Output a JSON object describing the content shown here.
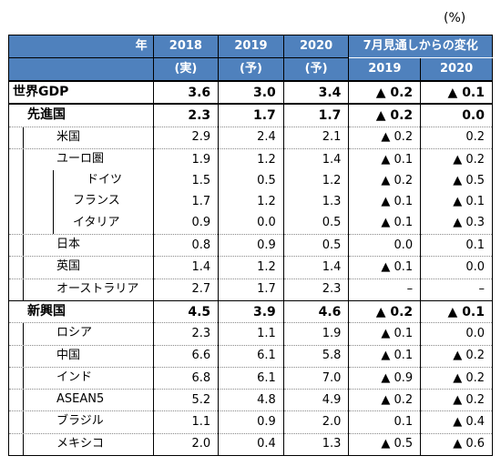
{
  "unit": "(%)",
  "header": {
    "year_label": "年",
    "years": [
      "2018",
      "2019",
      "2020"
    ],
    "year_notes": [
      "(実)",
      "(予)",
      "(予)"
    ],
    "revision_title": "7月見通しからの変化",
    "revision_years": [
      "2019",
      "2020"
    ]
  },
  "rows": [
    {
      "label": "世界GDP",
      "v2018": "3.6",
      "v2019": "3.0",
      "v2020": "3.4",
      "d2019": "▲ 0.2",
      "d2020": "▲ 0.1"
    },
    {
      "label": "先進国",
      "v2018": "2.3",
      "v2019": "1.7",
      "v2020": "1.7",
      "d2019": "▲ 0.2",
      "d2020": "0.0"
    },
    {
      "label": "米国",
      "v2018": "2.9",
      "v2019": "2.4",
      "v2020": "2.1",
      "d2019": "▲ 0.2",
      "d2020": "0.2"
    },
    {
      "label": "ユーロ圏",
      "v2018": "1.9",
      "v2019": "1.2",
      "v2020": "1.4",
      "d2019": "▲ 0.1",
      "d2020": "▲ 0.2"
    },
    {
      "label": "ドイツ",
      "v2018": "1.5",
      "v2019": "0.5",
      "v2020": "1.2",
      "d2019": "▲ 0.2",
      "d2020": "▲ 0.5"
    },
    {
      "label": "フランス",
      "v2018": "1.7",
      "v2019": "1.2",
      "v2020": "1.3",
      "d2019": "▲ 0.1",
      "d2020": "▲ 0.1"
    },
    {
      "label": "イタリア",
      "v2018": "0.9",
      "v2019": "0.0",
      "v2020": "0.5",
      "d2019": "▲ 0.1",
      "d2020": "▲ 0.3"
    },
    {
      "label": "日本",
      "v2018": "0.8",
      "v2019": "0.9",
      "v2020": "0.5",
      "d2019": "0.0",
      "d2020": "0.1"
    },
    {
      "label": "英国",
      "v2018": "1.4",
      "v2019": "1.2",
      "v2020": "1.4",
      "d2019": "▲ 0.1",
      "d2020": "0.0"
    },
    {
      "label": "オーストラリア",
      "v2018": "2.7",
      "v2019": "1.7",
      "v2020": "2.3",
      "d2019": "–",
      "d2020": "–"
    },
    {
      "label": "新興国",
      "v2018": "4.5",
      "v2019": "3.9",
      "v2020": "4.6",
      "d2019": "▲ 0.2",
      "d2020": "▲ 0.1"
    },
    {
      "label": "ロシア",
      "v2018": "2.3",
      "v2019": "1.1",
      "v2020": "1.9",
      "d2019": "▲ 0.1",
      "d2020": "0.0"
    },
    {
      "label": "中国",
      "v2018": "6.6",
      "v2019": "6.1",
      "v2020": "5.8",
      "d2019": "▲ 0.1",
      "d2020": "▲ 0.2"
    },
    {
      "label": "インド",
      "v2018": "6.8",
      "v2019": "6.1",
      "v2020": "7.0",
      "d2019": "▲ 0.9",
      "d2020": "▲ 0.2"
    },
    {
      "label": "ASEAN5",
      "v2018": "5.2",
      "v2019": "4.8",
      "v2020": "4.9",
      "d2019": "▲ 0.2",
      "d2020": "▲ 0.2"
    },
    {
      "label": "ブラジル",
      "v2018": "1.1",
      "v2019": "0.9",
      "v2020": "2.0",
      "d2019": "0.1",
      "d2020": "▲ 0.4"
    },
    {
      "label": "メキシコ",
      "v2018": "2.0",
      "v2019": "0.4",
      "v2020": "1.3",
      "d2019": "▲ 0.5",
      "d2020": "▲ 0.6"
    }
  ]
}
